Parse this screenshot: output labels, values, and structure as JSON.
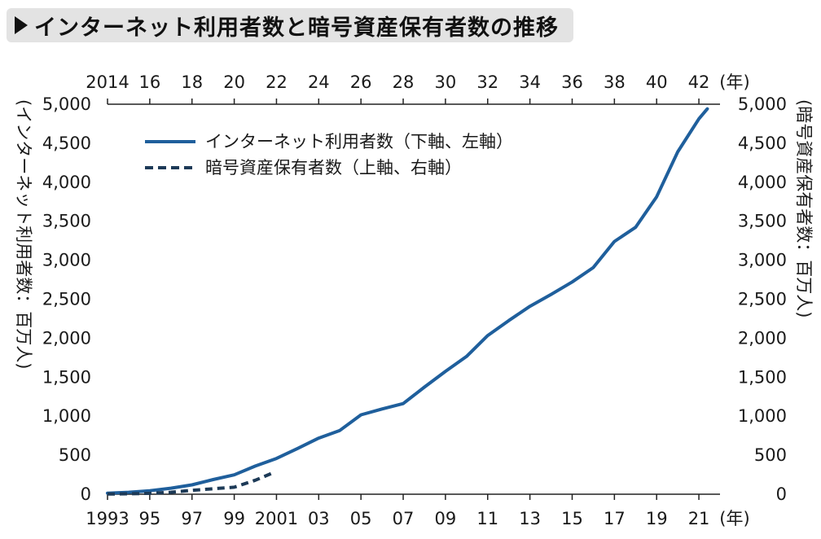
{
  "title": "インターネット利用者数と暗号資産保有者数の推移",
  "colors": {
    "internet": "#1f5f9c",
    "crypto": "#1d3a57",
    "axis": "#222222",
    "title_bg": "#e3e3e3"
  },
  "chart_data": {
    "type": "line",
    "title": "インターネット利用者数と暗号資産保有者数の推移",
    "bottom_axis": {
      "unit_label": "(年)",
      "range": [
        1993,
        2022
      ],
      "ticks": [
        1993,
        1995,
        1997,
        1999,
        2001,
        2003,
        2005,
        2007,
        2009,
        2011,
        2013,
        2015,
        2017,
        2019,
        2021
      ],
      "tick_labels": [
        "1993",
        "95",
        "97",
        "99",
        "2001",
        "03",
        "05",
        "07",
        "09",
        "11",
        "13",
        "15",
        "17",
        "19",
        "21"
      ]
    },
    "top_axis": {
      "unit_label": "(年)",
      "ticks": [
        2014,
        2016,
        2018,
        2020,
        2022,
        2024,
        2026,
        2028,
        2030,
        2032,
        2034,
        2036,
        2038,
        2040,
        2042
      ],
      "tick_labels": [
        "2014",
        "16",
        "18",
        "20",
        "22",
        "24",
        "26",
        "28",
        "30",
        "32",
        "34",
        "36",
        "38",
        "40",
        "42"
      ]
    },
    "left_axis": {
      "label": "(インターネット利用者数：百万人)",
      "range": [
        0,
        5000
      ],
      "tick_labels": [
        "0",
        "500",
        "1,000",
        "1,500",
        "2,000",
        "2,500",
        "3,000",
        "3,500",
        "4,000",
        "4,500",
        "5,000"
      ]
    },
    "right_axis": {
      "label": "(暗号資産保有者数：百万人)",
      "range": [
        0,
        5000
      ],
      "tick_labels": [
        "0",
        "500",
        "1,000",
        "1,500",
        "2,000",
        "2,500",
        "3,000",
        "3,500",
        "4,000",
        "4,500",
        "5,000"
      ]
    },
    "legend_position": "top-left",
    "series": [
      {
        "name": "インターネット利用者数（下軸、左軸）",
        "style": "solid",
        "axis": "bottom-left",
        "x": [
          1993,
          1994,
          1995,
          1996,
          1997,
          1998,
          1999,
          2000,
          2001,
          2002,
          2003,
          2004,
          2005,
          2006,
          2007,
          2008,
          2009,
          2010,
          2011,
          2012,
          2013,
          2014,
          2015,
          2016,
          2017,
          2018,
          2019,
          2020,
          2021,
          2021.4
        ],
        "y": [
          14,
          25,
          45,
          77,
          120,
          188,
          248,
          361,
          458,
          587,
          719,
          817,
          1018,
          1093,
          1162,
          1373,
          1575,
          1766,
          2034,
          2227,
          2409,
          2562,
          2721,
          2906,
          3240,
          3422,
          3813,
          4389,
          4813,
          4940
        ]
      },
      {
        "name": "暗号資産保有者数（上軸、右軸）",
        "style": "dashed",
        "axis": "top-right",
        "x": [
          2014,
          2015,
          2016,
          2017,
          2018,
          2019,
          2020,
          2021,
          2021.8
        ],
        "y": [
          2,
          5,
          12,
          25,
          50,
          70,
          90,
          180,
          270
        ]
      }
    ]
  }
}
